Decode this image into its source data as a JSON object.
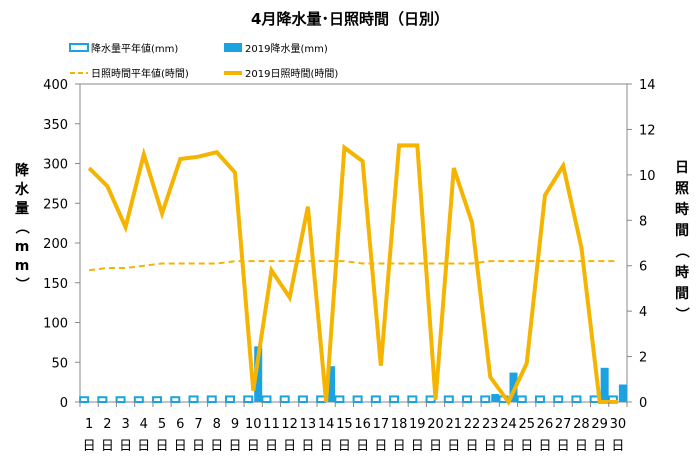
{
  "chart_data": {
    "type": "bar",
    "title": "4月降水量･日照時間（日別）",
    "ylabel_left": "降水量（mm）",
    "ylabel_right": "日照時間（時間）",
    "y_left": {
      "range": [
        0,
        400
      ],
      "ticks": [
        "0",
        "50",
        "100",
        "150",
        "200",
        "250",
        "300",
        "350",
        "400"
      ]
    },
    "y_right": {
      "range": [
        0,
        14
      ],
      "ticks": [
        "0",
        "2",
        "4",
        "6",
        "8",
        "10",
        "12",
        "14"
      ]
    },
    "categories": [
      "1",
      "2",
      "3",
      "4",
      "5",
      "6",
      "7",
      "8",
      "9",
      "10",
      "11",
      "12",
      "13",
      "14",
      "15",
      "16",
      "17",
      "18",
      "19",
      "20",
      "21",
      "22",
      "23",
      "24",
      "25",
      "26",
      "27",
      "28",
      "29",
      "30"
    ],
    "day_suffix": "日",
    "grid": false,
    "legend_position": "top",
    "series": [
      {
        "name": "降水量平年値(mm)",
        "type": "bar",
        "axis": "left",
        "style": "outline",
        "color": "#1aa3e0",
        "values": [
          6,
          6,
          6,
          6,
          6,
          6,
          7,
          7,
          7,
          7,
          7,
          7,
          7,
          7,
          7,
          7,
          7,
          7,
          7,
          7,
          7,
          7,
          7,
          7,
          7,
          7,
          7,
          7,
          7,
          7
        ]
      },
      {
        "name": "2019降水量(mm)",
        "type": "bar",
        "axis": "left",
        "style": "filled",
        "color": "#1aa3e0",
        "values": [
          0,
          0,
          0,
          0,
          0,
          0,
          0,
          0,
          0,
          70,
          0,
          0,
          0,
          45,
          0,
          0,
          0,
          0,
          0,
          0,
          0,
          0,
          10,
          37,
          0,
          0,
          0,
          0,
          43,
          22
        ]
      },
      {
        "name": "日照時間平年値(時間)",
        "type": "line",
        "axis": "right",
        "style": "dashed",
        "color": "#f5b400",
        "values": [
          5.8,
          5.9,
          5.9,
          6.0,
          6.1,
          6.1,
          6.1,
          6.1,
          6.2,
          6.2,
          6.2,
          6.2,
          6.2,
          6.2,
          6.2,
          6.1,
          6.1,
          6.1,
          6.1,
          6.1,
          6.1,
          6.1,
          6.2,
          6.2,
          6.2,
          6.2,
          6.2,
          6.2,
          6.2,
          6.2
        ]
      },
      {
        "name": "2019日照時間(時間)",
        "type": "line",
        "axis": "right",
        "style": "solid",
        "color": "#f5b400",
        "values": [
          10.3,
          9.5,
          7.7,
          10.9,
          8.3,
          10.7,
          10.8,
          11.0,
          10.1,
          0.5,
          5.8,
          4.6,
          8.6,
          0.0,
          11.2,
          10.6,
          1.6,
          11.3,
          11.3,
          0.1,
          10.3,
          7.9,
          1.1,
          0.0,
          1.7,
          9.1,
          10.4,
          6.8,
          0.0,
          0.0
        ]
      }
    ]
  }
}
